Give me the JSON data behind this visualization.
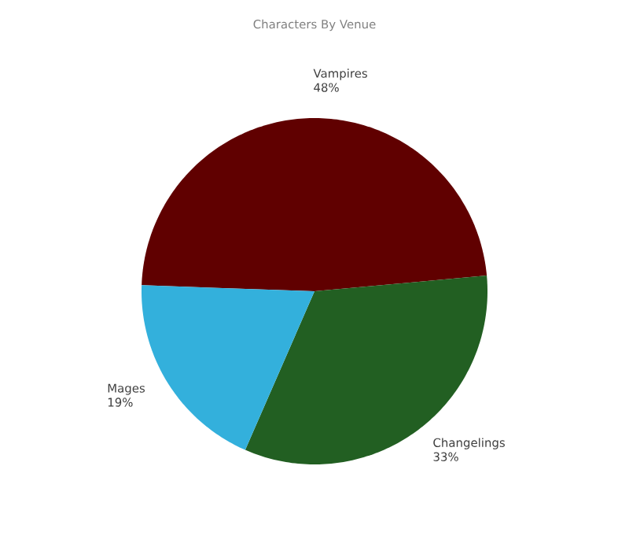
{
  "chart_data": {
    "type": "pie",
    "title": "Characters By Venue",
    "categories": [
      "Vampires",
      "Changelings",
      "Mages"
    ],
    "values": [
      48,
      33,
      19
    ],
    "value_labels": [
      "48%",
      "33%",
      "19%"
    ],
    "colors": [
      "#600000",
      "#225f22",
      "#33b0dc"
    ],
    "legend": false
  }
}
